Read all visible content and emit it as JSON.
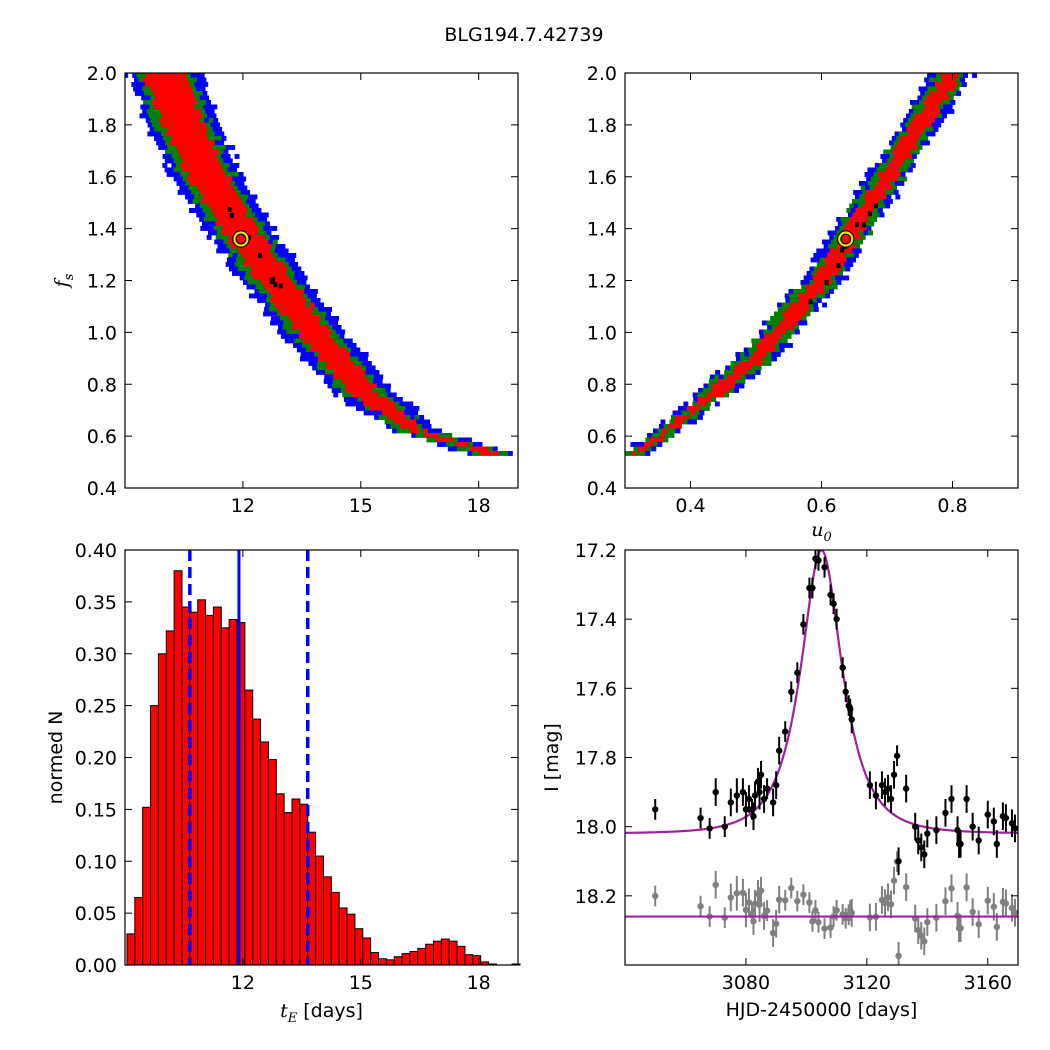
{
  "suptitle": "BLG194.7.42739",
  "chart_data": [
    {
      "type": "heatmap",
      "panel": "tE-fs",
      "title": "",
      "xlabel": "",
      "ylabel": "f_s",
      "xlim": [
        9.0,
        19.0
      ],
      "ylim": [
        0.4,
        2.0
      ],
      "xticks": [
        "12",
        "15",
        "18"
      ],
      "yticks": [
        "0.4",
        "0.6",
        "0.8",
        "1.0",
        "1.2",
        "1.4",
        "1.6",
        "1.8",
        "2.0"
      ],
      "confidence_colors": {
        "inner": "#ff0000",
        "middle": "#008000",
        "outer": "#0000ff"
      },
      "ridge": [
        [
          10.0,
          2.0
        ],
        [
          10.5,
          1.8
        ],
        [
          11.1,
          1.6
        ],
        [
          11.9,
          1.4
        ],
        [
          12.8,
          1.2
        ],
        [
          13.8,
          1.0
        ],
        [
          15.0,
          0.78
        ],
        [
          16.4,
          0.62
        ],
        [
          18.4,
          0.53
        ]
      ],
      "best_fit": {
        "x": 11.95,
        "y": 1.36
      }
    },
    {
      "type": "heatmap",
      "panel": "u0-fs",
      "title": "",
      "xlabel": "u_0",
      "ylabel": "",
      "xlim": [
        0.3,
        0.9
      ],
      "ylim": [
        0.4,
        2.0
      ],
      "xticks": [
        "0.4",
        "0.6",
        "0.8"
      ],
      "yticks": [
        "0.4",
        "0.6",
        "0.8",
        "1.0",
        "1.2",
        "1.4",
        "1.6",
        "1.8",
        "2.0"
      ],
      "confidence_colors": {
        "inner": "#ff0000",
        "middle": "#008000",
        "outer": "#0000ff"
      },
      "ridge": [
        [
          0.31,
          0.52
        ],
        [
          0.4,
          0.69
        ],
        [
          0.5,
          0.9
        ],
        [
          0.6,
          1.2
        ],
        [
          0.7,
          1.6
        ],
        [
          0.8,
          2.0
        ]
      ],
      "best_fit": {
        "x": 0.637,
        "y": 1.36
      }
    },
    {
      "type": "bar",
      "panel": "tE-histogram",
      "title": "",
      "xlabel": "t_E [days]",
      "ylabel": "normed N",
      "xlim": [
        9.0,
        19.0
      ],
      "ylim": [
        0.0,
        0.4
      ],
      "xticks": [
        "12",
        "15",
        "18"
      ],
      "yticks": [
        "0.00",
        "0.05",
        "0.10",
        "0.15",
        "0.20",
        "0.25",
        "0.30",
        "0.35",
        "0.40"
      ],
      "bin_start": 9.05,
      "bin_width": 0.2,
      "values": [
        0.03,
        0.065,
        0.152,
        0.25,
        0.3,
        0.322,
        0.38,
        0.345,
        0.34,
        0.352,
        0.337,
        0.345,
        0.325,
        0.333,
        0.33,
        0.265,
        0.237,
        0.215,
        0.198,
        0.165,
        0.147,
        0.16,
        0.155,
        0.128,
        0.105,
        0.085,
        0.07,
        0.055,
        0.049,
        0.035,
        0.026,
        0.012,
        0.006,
        0.005,
        0.008,
        0.011,
        0.013,
        0.016,
        0.02,
        0.023,
        0.025,
        0.023,
        0.018,
        0.01,
        0.009,
        0.003,
        0.001,
        0.0,
        0.0,
        0.001
      ],
      "median": 11.9,
      "lower": 10.65,
      "upper": 13.65,
      "bar_color": "#ff0000",
      "line_color": "#0000ff"
    },
    {
      "type": "scatter",
      "panel": "light-curve",
      "title": "",
      "xlabel": "HJD-2450000 [days]",
      "ylabel": "I [mag]",
      "xlim": [
        3040,
        3170
      ],
      "ylim": [
        18.4,
        17.2
      ],
      "xticks": [
        "3080",
        "3120",
        "3160"
      ],
      "yticks": [
        "17.2",
        "17.4",
        "17.6",
        "17.8",
        "18.0",
        "18.2"
      ],
      "model": {
        "t0": 3105.0,
        "tE": 12.0,
        "u0": 0.64,
        "baseline": 18.02,
        "color": "#a020a0"
      },
      "residual_baseline": 18.26,
      "data_color": "#000000",
      "residual_color": "#808080",
      "points": [
        [
          3050,
          17.95,
          0.03
        ],
        [
          3065,
          17.975,
          0.03
        ],
        [
          3068,
          18.005,
          0.03
        ],
        [
          3070,
          17.9,
          0.04
        ],
        [
          3073,
          18.0,
          0.03
        ],
        [
          3075,
          17.93,
          0.04
        ],
        [
          3077,
          17.91,
          0.05
        ],
        [
          3079,
          17.9,
          0.04
        ],
        [
          3080,
          17.95,
          0.05
        ],
        [
          3081,
          17.92,
          0.04
        ],
        [
          3082,
          17.95,
          0.03
        ],
        [
          3082.5,
          17.97,
          0.04
        ],
        [
          3083,
          17.91,
          0.04
        ],
        [
          3084,
          17.87,
          0.04
        ],
        [
          3084.5,
          17.9,
          0.05
        ],
        [
          3085,
          17.85,
          0.04
        ],
        [
          3086,
          17.92,
          0.04
        ],
        [
          3087,
          17.89,
          0.03
        ],
        [
          3089,
          17.93,
          0.04
        ],
        [
          3090,
          17.88,
          0.04
        ],
        [
          3091,
          17.78,
          0.04
        ],
        [
          3093,
          17.725,
          0.03
        ],
        [
          3095,
          17.61,
          0.03
        ],
        [
          3097,
          17.555,
          0.03
        ],
        [
          3099,
          17.415,
          0.03
        ],
        [
          3101,
          17.31,
          0.03
        ],
        [
          3102,
          17.31,
          0.03
        ],
        [
          3103,
          17.225,
          0.03
        ],
        [
          3104,
          17.23,
          0.03
        ],
        [
          3106,
          17.25,
          0.03
        ],
        [
          3108,
          17.33,
          0.03
        ],
        [
          3109,
          17.355,
          0.03
        ],
        [
          3110,
          17.4,
          0.03
        ],
        [
          3112,
          17.54,
          0.03
        ],
        [
          3113,
          17.61,
          0.03
        ],
        [
          3114,
          17.65,
          0.03
        ],
        [
          3114.5,
          17.66,
          0.03
        ],
        [
          3115,
          17.69,
          0.04
        ],
        [
          3121,
          17.88,
          0.04
        ],
        [
          3123,
          17.91,
          0.04
        ],
        [
          3125,
          17.88,
          0.04
        ],
        [
          3126,
          17.9,
          0.04
        ],
        [
          3127,
          17.89,
          0.04
        ],
        [
          3128,
          17.92,
          0.04
        ],
        [
          3129,
          17.85,
          0.04
        ],
        [
          3130,
          17.795,
          0.03
        ],
        [
          3130.5,
          18.1,
          0.04
        ],
        [
          3133,
          17.89,
          0.04
        ],
        [
          3136,
          18.0,
          0.04
        ],
        [
          3137,
          18.04,
          0.04
        ],
        [
          3138,
          18.06,
          0.04
        ],
        [
          3139,
          18.08,
          0.04
        ],
        [
          3140,
          18.02,
          0.04
        ],
        [
          3143,
          18.01,
          0.04
        ],
        [
          3146,
          17.96,
          0.04
        ],
        [
          3148,
          17.92,
          0.04
        ],
        [
          3150,
          18.01,
          0.04
        ],
        [
          3150.5,
          18.05,
          0.04
        ],
        [
          3151,
          18.05,
          0.04
        ],
        [
          3153,
          17.92,
          0.04
        ],
        [
          3155,
          18.0,
          0.04
        ],
        [
          3157,
          18.04,
          0.04
        ],
        [
          3160,
          17.965,
          0.04
        ],
        [
          3162,
          17.985,
          0.04
        ],
        [
          3163,
          18.05,
          0.04
        ],
        [
          3165,
          17.97,
          0.04
        ],
        [
          3166,
          17.975,
          0.04
        ],
        [
          3168,
          17.99,
          0.04
        ],
        [
          3169,
          18.005,
          0.04
        ]
      ]
    }
  ]
}
